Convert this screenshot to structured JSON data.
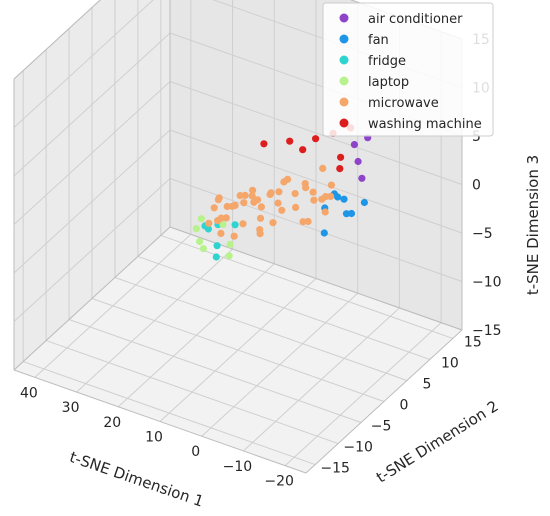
{
  "chart_data": {
    "type": "scatter",
    "projection": "3d",
    "title": "",
    "xlabel": "t-SNE Dimension 1",
    "ylabel": "t-SNE Dimension 2",
    "zlabel": "t-SNE Dimension 3",
    "xticks": [
      "−20",
      "−10",
      "0",
      "10",
      "20",
      "30",
      "40"
    ],
    "yticks": [
      "−15",
      "−10",
      "−5",
      "0",
      "5",
      "10",
      "15"
    ],
    "zticks": [
      "−15",
      "−10",
      "−5",
      "0",
      "5",
      "10",
      "15"
    ],
    "grid": true,
    "legend_position": "top-right",
    "series": [
      {
        "name": "air conditioner",
        "color": "#8e44c8",
        "points": [
          [
            -10,
            8,
            4
          ],
          [
            -8,
            9,
            5
          ],
          [
            -6,
            10,
            6
          ],
          [
            -12,
            7,
            3
          ],
          [
            -9,
            11,
            5
          ]
        ]
      },
      {
        "name": "fan",
        "color": "#1e96e8",
        "points": [
          [
            -16,
            0,
            3
          ],
          [
            -15,
            2,
            2
          ],
          [
            -13,
            -2,
            4
          ],
          [
            -17,
            3,
            3
          ],
          [
            -14,
            -3,
            2
          ],
          [
            -12,
            1,
            4
          ],
          [
            -15,
            -1,
            5
          ],
          [
            -11,
            4,
            2
          ]
        ]
      },
      {
        "name": "fridge",
        "color": "#2fd4d0",
        "points": [
          [
            4,
            -10,
            1
          ],
          [
            6,
            -8,
            2
          ],
          [
            2,
            -12,
            1
          ],
          [
            5,
            -11,
            3
          ],
          [
            8,
            -9,
            2
          ],
          [
            3,
            -7,
            2
          ]
        ]
      },
      {
        "name": "laptop",
        "color": "#b8f28c",
        "points": [
          [
            2,
            -9,
            1
          ],
          [
            6,
            -12,
            2
          ],
          [
            9,
            -10,
            2
          ],
          [
            0,
            -11,
            1
          ],
          [
            7,
            -6,
            1
          ],
          [
            4,
            -13,
            2
          ],
          [
            10,
            -8,
            2
          ]
        ]
      },
      {
        "name": "microwave",
        "color": "#f5a66a",
        "points": [
          [
            -10,
            2,
            3
          ],
          [
            -8,
            0,
            4
          ],
          [
            -6,
            -2,
            3
          ],
          [
            -4,
            -4,
            4
          ],
          [
            -2,
            -6,
            3
          ],
          [
            0,
            -4,
            3
          ],
          [
            2,
            -6,
            4
          ],
          [
            4,
            -8,
            3
          ],
          [
            6,
            -6,
            3
          ],
          [
            -9,
            -2,
            2
          ],
          [
            -7,
            3,
            5
          ],
          [
            -5,
            1,
            4
          ],
          [
            -3,
            -1,
            5
          ],
          [
            -1,
            -3,
            4
          ],
          [
            1,
            -5,
            5
          ],
          [
            3,
            -7,
            4
          ],
          [
            5,
            -9,
            3
          ],
          [
            7,
            -7,
            4
          ],
          [
            -11,
            0,
            4
          ],
          [
            -8,
            4,
            3
          ],
          [
            -6,
            -5,
            4
          ],
          [
            -4,
            2,
            3
          ],
          [
            -2,
            -2,
            4
          ],
          [
            0,
            -8,
            3
          ],
          [
            2,
            -3,
            3
          ],
          [
            4,
            -5,
            4
          ],
          [
            6,
            -10,
            3
          ],
          [
            8,
            -7,
            3
          ],
          [
            -3,
            -7,
            2
          ],
          [
            1,
            -1,
            3
          ],
          [
            -7,
            -3,
            5
          ],
          [
            -5,
            -6,
            3
          ],
          [
            3,
            -10,
            4
          ],
          [
            5,
            -3,
            3
          ],
          [
            7,
            -4,
            2
          ],
          [
            -9,
            1,
            3
          ],
          [
            -1,
            0,
            4
          ],
          [
            1,
            -9,
            2
          ],
          [
            -12,
            -1,
            3
          ],
          [
            9,
            -5,
            3
          ],
          [
            -10,
            -4,
            3
          ],
          [
            -6,
            2,
            2
          ],
          [
            0,
            -6,
            5
          ],
          [
            4,
            -2,
            2
          ],
          [
            -4,
            -8,
            3
          ],
          [
            2,
            -11,
            3
          ]
        ]
      },
      {
        "name": "washing machine",
        "color": "#dc1e1e",
        "points": [
          [
            -6,
            10,
            6
          ],
          [
            -2,
            6,
            6
          ],
          [
            2,
            4,
            6
          ],
          [
            -4,
            8,
            6
          ],
          [
            -8,
            6,
            5
          ],
          [
            6,
            2,
            6
          ],
          [
            0,
            5,
            5
          ],
          [
            -10,
            4,
            5
          ]
        ]
      }
    ]
  }
}
